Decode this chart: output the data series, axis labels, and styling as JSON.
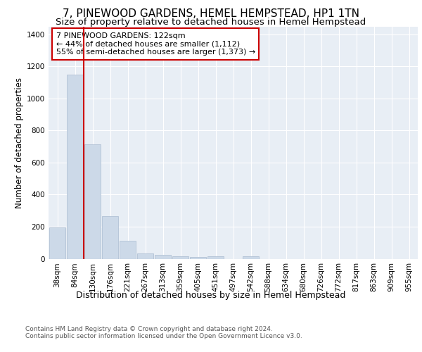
{
  "title": "7, PINEWOOD GARDENS, HEMEL HEMPSTEAD, HP1 1TN",
  "subtitle": "Size of property relative to detached houses in Hemel Hempstead",
  "xlabel": "Distribution of detached houses by size in Hemel Hempstead",
  "ylabel": "Number of detached properties",
  "footer_line1": "Contains HM Land Registry data © Crown copyright and database right 2024.",
  "footer_line2": "Contains public sector information licensed under the Open Government Licence v3.0.",
  "bins": [
    "38sqm",
    "84sqm",
    "130sqm",
    "176sqm",
    "221sqm",
    "267sqm",
    "313sqm",
    "359sqm",
    "405sqm",
    "451sqm",
    "497sqm",
    "542sqm",
    "588sqm",
    "634sqm",
    "680sqm",
    "726sqm",
    "772sqm",
    "817sqm",
    "863sqm",
    "909sqm",
    "955sqm"
  ],
  "bar_values": [
    195,
    1150,
    715,
    265,
    110,
    35,
    25,
    15,
    10,
    15,
    0,
    15,
    0,
    0,
    0,
    0,
    0,
    0,
    0,
    0,
    0
  ],
  "bar_color": "#ccd9e8",
  "bar_edgecolor": "#aabbd0",
  "annotation_text": "7 PINEWOOD GARDENS: 122sqm\n← 44% of detached houses are smaller (1,112)\n55% of semi-detached houses are larger (1,373) →",
  "vline_color": "#cc0000",
  "vline_lw": 1.5,
  "box_edgecolor": "#cc0000",
  "ylim": [
    0,
    1450
  ],
  "yticks": [
    0,
    200,
    400,
    600,
    800,
    1000,
    1200,
    1400
  ],
  "plot_bg_color": "#e8eef5",
  "title_fontsize": 11,
  "subtitle_fontsize": 9.5,
  "annotation_fontsize": 8,
  "ylabel_fontsize": 8.5,
  "xlabel_fontsize": 9,
  "tick_fontsize": 7.5,
  "footer_fontsize": 6.5
}
